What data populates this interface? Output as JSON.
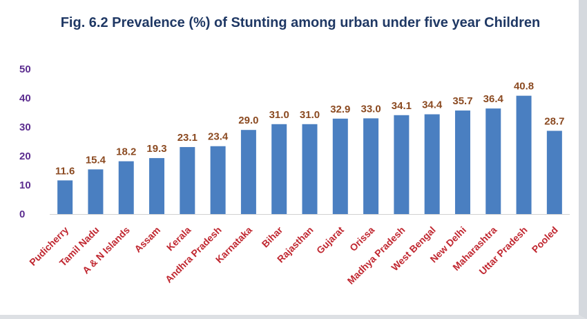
{
  "chart_data": {
    "type": "bar",
    "title": "Fig. 6.2 Prevalence (%) of Stunting among urban under five year Children",
    "xlabel": "",
    "ylabel": "",
    "ylim": [
      0,
      50
    ],
    "yticks": [
      "50",
      "40",
      "30",
      "20",
      "10",
      "0"
    ],
    "categories": [
      "Pudicherry",
      "Tamil Nadu",
      "A & N Islands",
      "Assam",
      "Kerala",
      "Andhra Pradesh",
      "Karnataka",
      "Bihar",
      "Rajasthan",
      "Gujarat",
      "Orissa",
      "Madhya Pradesh",
      "West Bengal",
      "New Delhi",
      "Maharashtra",
      "Uttar Pradesh",
      "Pooled"
    ],
    "values": [
      11.6,
      15.4,
      18.2,
      19.3,
      23.1,
      23.4,
      29.0,
      31.0,
      31.0,
      32.9,
      33.0,
      34.1,
      34.4,
      35.7,
      36.4,
      40.8,
      28.7
    ],
    "value_labels": [
      "11.6",
      "15.4",
      "18.2",
      "19.3",
      "23.1",
      "23.4",
      "29.0",
      "31.0",
      "31.0",
      "32.9",
      "33.0",
      "34.1",
      "34.4",
      "35.7",
      "36.4",
      "40.8",
      "28.7"
    ],
    "colors": {
      "bar": "#4a7fc1",
      "title": "#1f3864",
      "ytick": "#5b2c8f",
      "data_label": "#8b4a21",
      "category_label": "#c0262f"
    }
  }
}
